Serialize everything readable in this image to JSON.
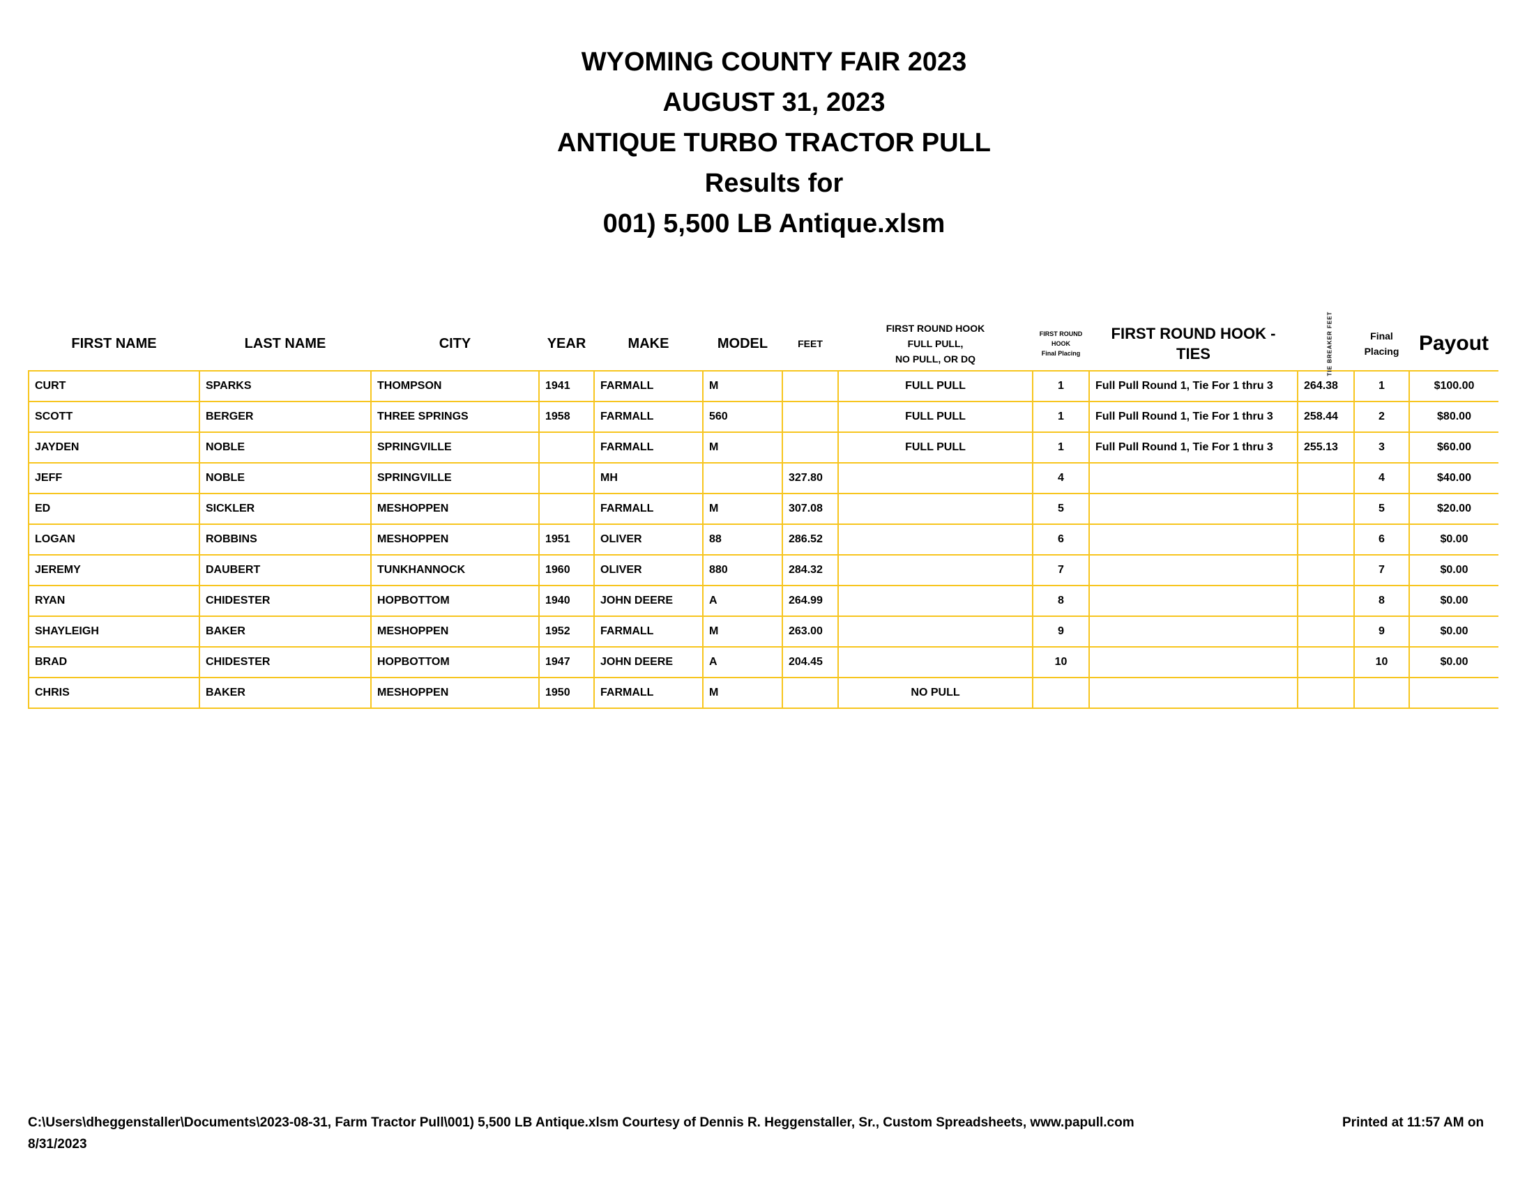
{
  "title": {
    "line1": "WYOMING COUNTY FAIR 2023",
    "line2": "AUGUST 31, 2023",
    "line3": "ANTIQUE TURBO TRACTOR PULL",
    "line4": "Results for",
    "line5": "001) 5,500 LB Antique.xlsm"
  },
  "headers": {
    "first": "FIRST NAME",
    "last": "LAST NAME",
    "city": "CITY",
    "year": "YEAR",
    "make": "MAKE",
    "model": "MODEL",
    "feet": "FEET",
    "hook1": "FIRST ROUND HOOK",
    "hook2": "FULL PULL,",
    "hook3": "NO PULL, OR DQ",
    "frh1": "FIRST ROUND",
    "frh2": "HOOK",
    "frh3": "Final Placing",
    "ties1": "FIRST ROUND HOOK -",
    "ties2": "TIES",
    "tb": "TIE BREAKER FEET",
    "fp1": "Final",
    "fp2": "Placing",
    "payout": "Payout"
  },
  "rows": [
    [
      "CURT",
      "SPARKS",
      "THOMPSON",
      "1941",
      "FARMALL",
      "M",
      "",
      "FULL PULL",
      "1",
      "Full Pull Round 1, Tie For 1 thru 3",
      "264.38",
      "1",
      "$100.00"
    ],
    [
      "SCOTT",
      "BERGER",
      "THREE SPRINGS",
      "1958",
      "FARMALL",
      "560",
      "",
      "FULL PULL",
      "1",
      "Full Pull Round 1, Tie For 1 thru 3",
      "258.44",
      "2",
      "$80.00"
    ],
    [
      "JAYDEN",
      "NOBLE",
      "SPRINGVILLE",
      "",
      "FARMALL",
      "M",
      "",
      "FULL PULL",
      "1",
      "Full Pull Round 1, Tie For 1 thru 3",
      "255.13",
      "3",
      "$60.00"
    ],
    [
      "JEFF",
      "NOBLE",
      "SPRINGVILLE",
      "",
      "MH",
      "",
      "327.80",
      "",
      "4",
      "",
      "",
      "4",
      "$40.00"
    ],
    [
      "ED",
      "SICKLER",
      "MESHOPPEN",
      "",
      "FARMALL",
      "M",
      "307.08",
      "",
      "5",
      "",
      "",
      "5",
      "$20.00"
    ],
    [
      "LOGAN",
      "ROBBINS",
      "MESHOPPEN",
      "1951",
      "OLIVER",
      "88",
      "286.52",
      "",
      "6",
      "",
      "",
      "6",
      "$0.00"
    ],
    [
      "JEREMY",
      "DAUBERT",
      "TUNKHANNOCK",
      "1960",
      "OLIVER",
      "880",
      "284.32",
      "",
      "7",
      "",
      "",
      "7",
      "$0.00"
    ],
    [
      "RYAN",
      "CHIDESTER",
      "HOPBOTTOM",
      "1940",
      "JOHN DEERE",
      "A",
      "264.99",
      "",
      "8",
      "",
      "",
      "8",
      "$0.00"
    ],
    [
      "SHAYLEIGH",
      "BAKER",
      "MESHOPPEN",
      "1952",
      "FARMALL",
      "M",
      "263.00",
      "",
      "9",
      "",
      "",
      "9",
      "$0.00"
    ],
    [
      "BRAD",
      "CHIDESTER",
      "HOPBOTTOM",
      "1947",
      "JOHN DEERE",
      "A",
      "204.45",
      "",
      "10",
      "",
      "",
      "10",
      "$0.00"
    ],
    [
      "CHRIS",
      "BAKER",
      "MESHOPPEN",
      "1950",
      "FARMALL",
      "M",
      "",
      "NO PULL",
      "",
      "",
      "",
      "",
      ""
    ]
  ],
  "footer": {
    "path": "C:\\Users\\dheggenstaller\\Documents\\2023-08-31,  Farm Tractor Pull\\001) 5,500 LB Antique.xlsm  Courtesy of Dennis R. Heggenstaller, Sr., Custom Spreadsheets, www.papull.com",
    "printed": "Printed at 11:57 AM on",
    "date": "8/31/2023"
  },
  "colors": {
    "grid": "#f7c51e"
  }
}
